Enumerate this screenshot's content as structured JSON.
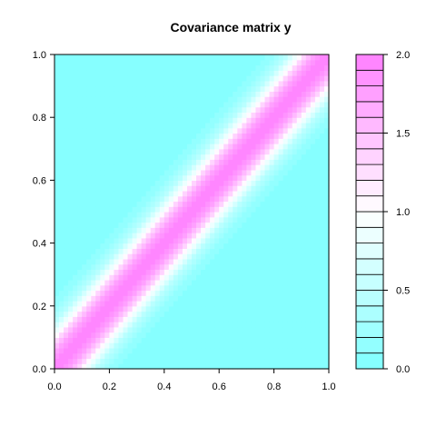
{
  "chart_data": {
    "type": "heatmap",
    "title": "Covariance matrix y",
    "xlabel": "",
    "ylabel": "",
    "xlim": [
      0,
      1
    ],
    "ylim": [
      0,
      1
    ],
    "x_ticks": [
      "0.0",
      "0.2",
      "0.4",
      "0.6",
      "0.8",
      "1.0"
    ],
    "y_ticks": [
      "0.0",
      "0.2",
      "0.4",
      "0.6",
      "0.8",
      "1.0"
    ],
    "zlim": [
      0,
      2
    ],
    "colorbar_ticks": [
      "0.0",
      "0.5",
      "1.0",
      "1.5",
      "2.0"
    ],
    "colorbar_levels": 20,
    "legend_position": "right",
    "colors": {
      "low": "#80ffff",
      "mid": "#ffffff",
      "high": "#ff80ff"
    },
    "pattern": "band along the diagonal: value 2.0 at x = y, decaying to 0 as |x - y| grows"
  }
}
